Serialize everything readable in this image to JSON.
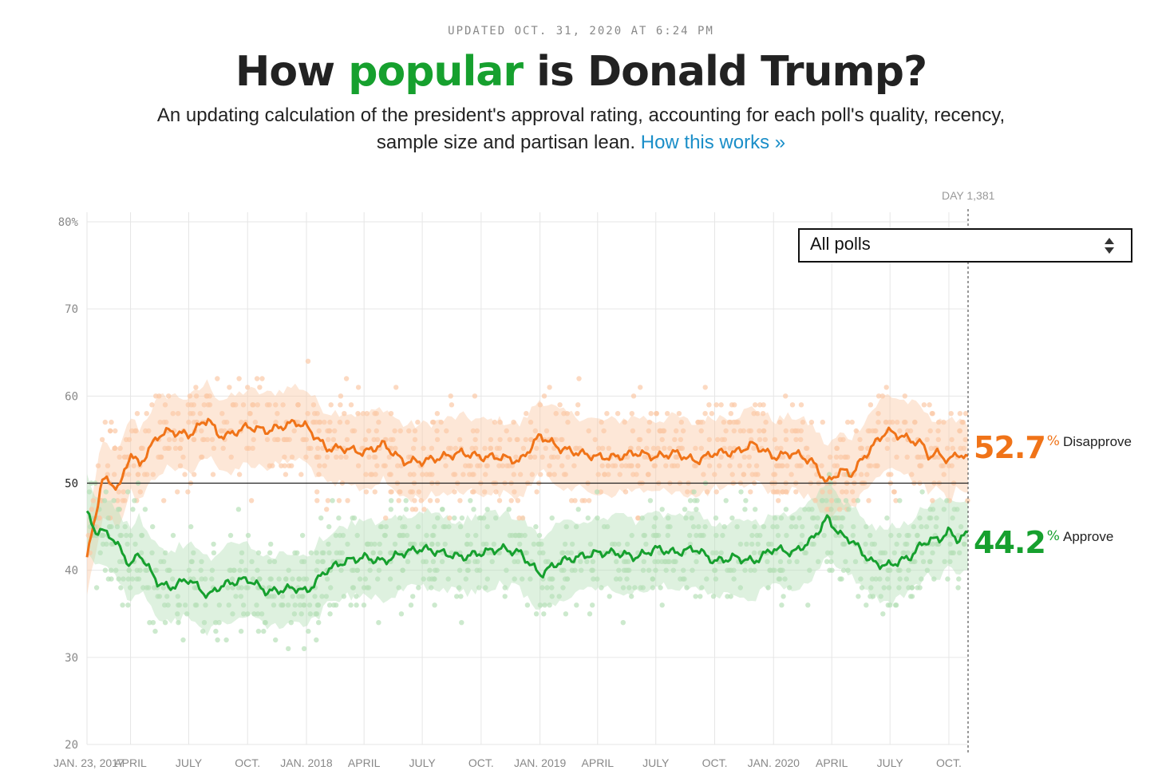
{
  "header": {
    "updated": "UPDATED OCT. 31, 2020 AT 6:24 PM",
    "title_before": "How ",
    "title_highlight": "popular",
    "title_after": " is Donald Trump?",
    "subtitle": "An updating calculation of the president's approval rating, accounting for each poll's quality, recency, sample size and partisan lean.",
    "link_text": "How this works »"
  },
  "controls": {
    "poll_filter": "All polls"
  },
  "colors": {
    "approve": "#16a02e",
    "disapprove": "#f07318",
    "approve_light": "#b6dfb8",
    "disapprove_light": "#fbc9a6",
    "title_highlight": "#16a02e",
    "link": "#1a8ec8"
  },
  "chart_data": {
    "type": "line",
    "day_marker": "DAY 1,381",
    "x_start": "2017-01-23",
    "x_end": "2020-10-31",
    "x_tick_labels": [
      "JAN. 23, 2017",
      "APRIL",
      "JULY",
      "OCT.",
      "JAN. 2018",
      "APRIL",
      "JULY",
      "OCT.",
      "JAN. 2019",
      "APRIL",
      "JULY",
      "OCT.",
      "JAN. 2020",
      "APRIL",
      "JULY",
      "OCT."
    ],
    "x_tick_dates": [
      "2017-01-23",
      "2017-04-01",
      "2017-07-01",
      "2017-10-01",
      "2018-01-01",
      "2018-04-01",
      "2018-07-01",
      "2018-10-01",
      "2019-01-01",
      "2019-04-01",
      "2019-07-01",
      "2019-10-01",
      "2020-01-01",
      "2020-04-01",
      "2020-07-01",
      "2020-10-01"
    ],
    "y_ticks": [
      20,
      30,
      40,
      50,
      60,
      70,
      80
    ],
    "y_tick_labels": [
      "20",
      "30",
      "40",
      "50",
      "60",
      "70",
      "80%"
    ],
    "ylim": [
      20,
      80
    ],
    "reference_line": 50,
    "grid": true,
    "series": [
      {
        "name": "Disapprove",
        "final_value": "52.7",
        "x": [
          "2017-01-23",
          "2017-02-05",
          "2017-02-15",
          "2017-03-01",
          "2017-03-15",
          "2017-04-01",
          "2017-04-15",
          "2017-05-01",
          "2017-05-15",
          "2017-06-01",
          "2017-07-01",
          "2017-08-01",
          "2017-08-15",
          "2017-09-01",
          "2017-10-01",
          "2017-11-01",
          "2017-12-15",
          "2018-01-01",
          "2018-02-01",
          "2018-03-01",
          "2018-04-01",
          "2018-05-01",
          "2018-06-01",
          "2018-07-01",
          "2018-08-01",
          "2018-09-01",
          "2018-10-01",
          "2018-11-01",
          "2018-12-01",
          "2019-01-01",
          "2019-02-01",
          "2019-03-01",
          "2019-04-01",
          "2019-05-01",
          "2019-06-01",
          "2019-07-01",
          "2019-08-01",
          "2019-09-01",
          "2019-10-01",
          "2019-11-01",
          "2019-12-01",
          "2020-01-01",
          "2020-02-01",
          "2020-03-01",
          "2020-03-25",
          "2020-04-15",
          "2020-05-01",
          "2020-06-01",
          "2020-06-25",
          "2020-07-15",
          "2020-08-01",
          "2020-08-20",
          "2020-09-01",
          "2020-09-15",
          "2020-10-01",
          "2020-10-15",
          "2020-10-31"
        ],
        "y": [
          41.5,
          46,
          50.5,
          50,
          49.5,
          53.5,
          52,
          54,
          55.5,
          56,
          55.5,
          57.5,
          55.5,
          55.5,
          56.5,
          56,
          57,
          56.5,
          54,
          54,
          53.5,
          54.5,
          52.5,
          52.5,
          53,
          53.5,
          53,
          53,
          52.5,
          55.5,
          54,
          53.5,
          53,
          53,
          53.5,
          53,
          53.5,
          52.5,
          53.5,
          53.5,
          54.5,
          53,
          53.5,
          52.5,
          50,
          51.5,
          51,
          54,
          56,
          55.5,
          55,
          54.5,
          53,
          53.5,
          52.5,
          53.5,
          52.7
        ]
      },
      {
        "name": "Approve",
        "final_value": "44.2",
        "x": [
          "2017-01-23",
          "2017-02-05",
          "2017-02-15",
          "2017-03-01",
          "2017-03-15",
          "2017-04-01",
          "2017-04-15",
          "2017-05-01",
          "2017-05-15",
          "2017-06-01",
          "2017-07-01",
          "2017-08-01",
          "2017-08-15",
          "2017-09-01",
          "2017-10-01",
          "2017-11-01",
          "2017-12-15",
          "2018-01-01",
          "2018-02-01",
          "2018-03-01",
          "2018-04-01",
          "2018-05-01",
          "2018-06-01",
          "2018-07-01",
          "2018-08-01",
          "2018-09-01",
          "2018-10-01",
          "2018-11-01",
          "2018-12-01",
          "2019-01-01",
          "2019-02-01",
          "2019-03-01",
          "2019-04-01",
          "2019-05-01",
          "2019-06-01",
          "2019-07-01",
          "2019-08-01",
          "2019-09-01",
          "2019-10-01",
          "2019-11-01",
          "2019-12-01",
          "2020-01-01",
          "2020-02-01",
          "2020-03-01",
          "2020-03-25",
          "2020-04-15",
          "2020-05-01",
          "2020-06-01",
          "2020-06-25",
          "2020-07-15",
          "2020-08-01",
          "2020-08-20",
          "2020-09-01",
          "2020-09-15",
          "2020-10-01",
          "2020-10-15",
          "2020-10-31"
        ],
        "y": [
          46.5,
          44.5,
          44.5,
          44,
          42.5,
          40.5,
          42,
          40,
          38.5,
          38,
          39,
          37,
          38,
          38.5,
          39,
          37.5,
          38,
          37.5,
          40,
          41,
          41.5,
          41,
          42,
          42.5,
          42,
          41.5,
          42,
          42.5,
          42,
          39.5,
          41,
          41.5,
          42,
          42,
          41.5,
          42.5,
          42,
          42.5,
          41,
          41.5,
          41,
          42.5,
          42,
          43.5,
          46,
          44,
          43.5,
          41,
          40.5,
          41,
          41.5,
          43,
          43.5,
          43.5,
          44.5,
          43.5,
          44.2
        ]
      }
    ]
  }
}
